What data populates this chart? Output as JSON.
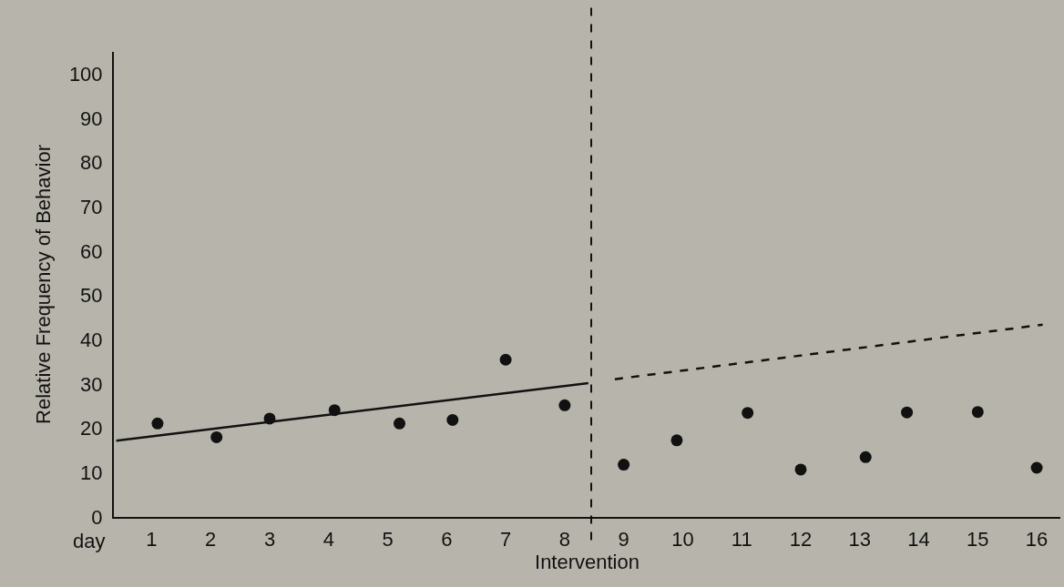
{
  "chart_data": {
    "type": "scatter",
    "xlabel": "Intervention",
    "ylabel": "Relative Frequency of Behavior",
    "annotations": [
      "day"
    ],
    "xlim": [
      0.36,
      16.4
    ],
    "xticks": [
      1,
      2,
      3,
      4,
      5,
      6,
      7,
      8,
      9,
      10,
      11,
      12,
      13,
      14,
      15,
      16
    ],
    "ylim": [
      0,
      105
    ],
    "yticks": [
      0,
      10,
      20,
      30,
      40,
      50,
      60,
      70,
      80,
      90,
      100
    ],
    "grid": false,
    "series": [
      {
        "marker": "circle",
        "color": "#111111",
        "x": [
          1.1,
          2.1,
          3.0,
          4.1,
          5.2,
          6.1,
          7.0,
          8.0,
          9.0,
          9.9,
          11.1,
          12.0,
          13.1,
          13.8,
          15.0,
          16.0
        ],
        "values": [
          21.1,
          18.0,
          22.2,
          24.1,
          21.1,
          21.9,
          35.5,
          25.2,
          11.8,
          17.3,
          23.5,
          10.7,
          13.5,
          23.6,
          23.7,
          11.1
        ]
      },
      {
        "type": "line",
        "color": "#111111",
        "line_style": "solid",
        "x": [
          0.4,
          8.4
        ],
        "values": [
          17.2,
          30.2
        ]
      },
      {
        "type": "line",
        "color": "#111111",
        "line_style": "dashed",
        "x": [
          8.85,
          16.1
        ],
        "values": [
          31.1,
          43.4
        ]
      }
    ],
    "ref_lines": [
      {
        "axis": "x",
        "value": 8.45,
        "color": "#111111",
        "line_style": "dashed"
      }
    ]
  }
}
